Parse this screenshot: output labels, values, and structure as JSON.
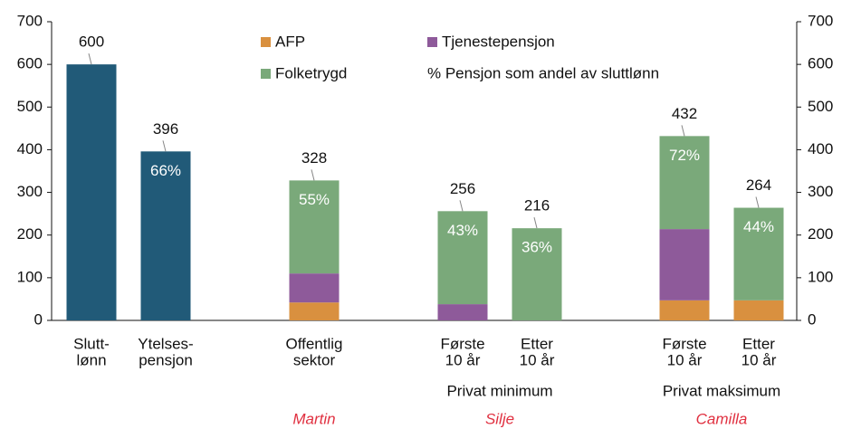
{
  "chart_data": {
    "type": "stacked_bar",
    "categories": [
      [
        "Slutt-",
        "lønn"
      ],
      [
        "Ytelses-",
        "pensjon"
      ],
      [
        "Offentlig",
        "sektor"
      ],
      [
        "Første",
        "10 år"
      ],
      [
        "Etter",
        "10 år"
      ],
      [
        "Første",
        "10 år"
      ],
      [
        "Etter",
        "10 år"
      ]
    ],
    "series": [
      {
        "name": "AFP",
        "color": "#d9903f",
        "values": [
          null,
          null,
          42,
          null,
          null,
          47,
          47
        ]
      },
      {
        "name": "Tjenestepensjon",
        "color": "#8e5a9a",
        "values": [
          null,
          null,
          68,
          38,
          null,
          167,
          null
        ]
      },
      {
        "name": "Folketrygd",
        "color": "#7aa97a",
        "values": [
          null,
          null,
          218,
          218,
          216,
          218,
          217
        ]
      },
      {
        "color": "#215a78",
        "values": [
          600,
          396,
          null,
          null,
          null,
          null,
          null
        ]
      }
    ],
    "total_labels": [
      "600",
      "396",
      "328",
      "256",
      "216",
      "432",
      "264"
    ],
    "share_labels": [
      null,
      "66%",
      "55%",
      "43%",
      "36%",
      "72%",
      "44%"
    ],
    "share_legend": "% Pensjon som andel av sluttlønn",
    "groups": [
      {
        "label": "Privat minimum",
        "from": 3,
        "to": 4
      },
      {
        "label": "Privat maksimum",
        "from": 5,
        "to": 6
      }
    ],
    "persons": [
      {
        "label": "Martin",
        "from": 2,
        "to": 2
      },
      {
        "label": "Silje",
        "from": 3,
        "to": 4
      },
      {
        "label": "Camilla",
        "from": 5,
        "to": 6
      }
    ],
    "ylim": [
      0,
      700
    ],
    "yticks": [
      0,
      100,
      200,
      300,
      400,
      500,
      600,
      700
    ],
    "y2lim": [
      0,
      700
    ],
    "y2ticks": [
      0,
      100,
      200,
      300,
      400,
      500,
      600,
      700
    ]
  }
}
